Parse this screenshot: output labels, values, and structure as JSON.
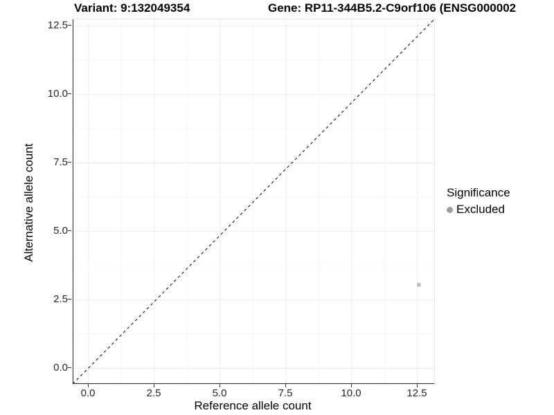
{
  "header": {
    "variant_title": "Variant: 9:132049354",
    "gene_title": "Gene: RP11-344B5.2-C9orf106 (ENSG000002"
  },
  "chart_data": {
    "type": "scatter",
    "xlabel": "Reference allele count",
    "ylabel": "Alternative allele count",
    "x_ticks": [
      0,
      2.5,
      5,
      7.5,
      10,
      12.5
    ],
    "y_ticks": [
      0,
      2.5,
      5,
      7.5,
      10,
      12.5
    ],
    "x_tick_labels": [
      "0.0",
      "2.5",
      "5.0",
      "7.5",
      "10.0",
      "12.5"
    ],
    "y_tick_labels": [
      "0.0",
      "2.5",
      "5.0",
      "7.5",
      "10.0",
      "12.5"
    ],
    "xlim": [
      -0.6,
      13.1
    ],
    "ylim": [
      -0.55,
      12.75
    ],
    "grid": {
      "major": true,
      "minor": true
    },
    "identity_line": {
      "slope": 1,
      "intercept": 0,
      "style": "dashed",
      "color": "#000000"
    },
    "series": [
      {
        "name": "Excluded",
        "color": "#bfbfbf",
        "points": [
          {
            "x": 12.55,
            "y": 3.05
          }
        ]
      }
    ],
    "legend": {
      "title": "Significance",
      "position": "right",
      "items": [
        {
          "label": "Excluded",
          "color": "#9e9e9e"
        }
      ]
    }
  },
  "colors": {
    "background": "#ffffff",
    "grid_major": "#ececec",
    "grid_minor": "#f5f5f5",
    "axis_line": "#333333",
    "panel_border": "#e4e4e4",
    "tick_text": "#262626",
    "title_text": "#000000"
  }
}
